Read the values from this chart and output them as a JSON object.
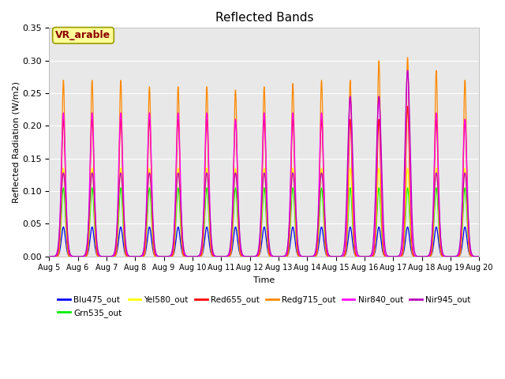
{
  "title": "Reflected Bands",
  "xlabel": "Time",
  "ylabel": "Reflected Radiation (W/m2)",
  "ylim": [
    0.0,
    0.35
  ],
  "num_days": 15,
  "start_day": 5,
  "background_color": "#e8e8e8",
  "annotation_text": "VR_arable",
  "annotation_box_color": "#ffff99",
  "annotation_text_color": "#8B0000",
  "annotation_edge_color": "#999900",
  "series": [
    {
      "name": "Blu475_out",
      "color": "#0000ff",
      "peak": 0.045,
      "sigma": 0.07
    },
    {
      "name": "Grn535_out",
      "color": "#00ee00",
      "peak": 0.105,
      "sigma": 0.07
    },
    {
      "name": "Yel580_out",
      "color": "#ffff00",
      "peak": 0.135,
      "sigma": 0.07
    },
    {
      "name": "Red655_out",
      "color": "#ff0000",
      "peak": 0.21,
      "sigma": 0.065
    },
    {
      "name": "Redg715_out",
      "color": "#ff8800",
      "peak": 0.27,
      "sigma": 0.055
    },
    {
      "name": "Nir840_out",
      "color": "#ff00ff",
      "peak": 0.22,
      "sigma": 0.075
    },
    {
      "name": "Nir945_out",
      "color": "#bb00bb",
      "peak": 0.128,
      "sigma": 0.09
    }
  ],
  "day_peaks": {
    "Redg715_out": [
      0.27,
      0.27,
      0.27,
      0.26,
      0.26,
      0.26,
      0.255,
      0.26,
      0.265,
      0.27,
      0.27,
      0.3,
      0.305,
      0.285,
      0.27
    ],
    "Nir840_out": [
      0.22,
      0.22,
      0.22,
      0.22,
      0.22,
      0.22,
      0.21,
      0.22,
      0.22,
      0.22,
      0.245,
      0.245,
      0.285,
      0.22,
      0.21
    ],
    "Red655_out": [
      0.21,
      0.21,
      0.21,
      0.21,
      0.21,
      0.21,
      0.21,
      0.21,
      0.21,
      0.21,
      0.21,
      0.21,
      0.23,
      0.21,
      0.21
    ],
    "Nir945_out": [
      0.128,
      0.128,
      0.128,
      0.128,
      0.128,
      0.128,
      0.128,
      0.128,
      0.128,
      0.128,
      0.245,
      0.245,
      0.285,
      0.128,
      0.128
    ],
    "Yel580_out": [
      0.135,
      0.135,
      0.135,
      0.135,
      0.135,
      0.135,
      0.135,
      0.135,
      0.135,
      0.135,
      0.135,
      0.135,
      0.135,
      0.135,
      0.135
    ],
    "Grn535_out": [
      0.105,
      0.105,
      0.105,
      0.105,
      0.105,
      0.105,
      0.105,
      0.105,
      0.105,
      0.105,
      0.105,
      0.105,
      0.105,
      0.105,
      0.105
    ],
    "Blu475_out": [
      0.045,
      0.045,
      0.045,
      0.045,
      0.045,
      0.045,
      0.045,
      0.045,
      0.045,
      0.045,
      0.045,
      0.045,
      0.045,
      0.045,
      0.045
    ]
  },
  "yticks": [
    0.0,
    0.05,
    0.1,
    0.15,
    0.2,
    0.25,
    0.3,
    0.35
  ],
  "grid_color": "#ffffff",
  "legend_ncol": 6,
  "legend_fontsize": 7.5
}
